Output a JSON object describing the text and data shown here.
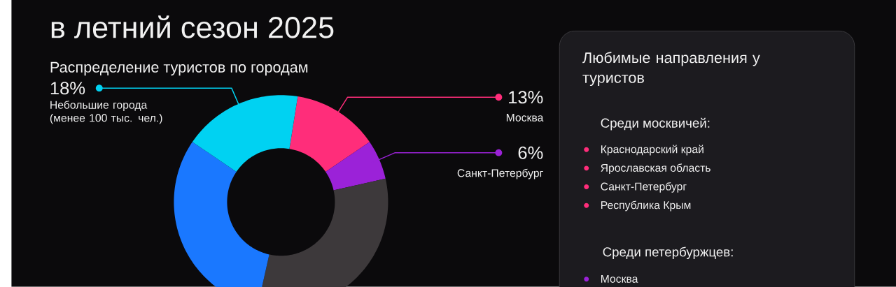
{
  "chart_data": {
    "type": "donut",
    "title": "в летний сезон 2025",
    "subtitle": "Распределение туристов по городам",
    "categories": [
      "Москва",
      "Санкт-Петербург",
      null,
      null,
      "Небольшие города (менее 100 тыс. чел.)"
    ],
    "values": [
      13,
      6,
      32,
      31,
      18
    ],
    "colors": [
      "#ff2d7a",
      "#9b22d8",
      "#3d393b",
      "#1a78ff",
      "#00d2f2"
    ],
    "value_labels": [
      "13%",
      "6%",
      null,
      null,
      "18%"
    ],
    "legend": "right",
    "annotations": [
      "Любимые направления у туристов",
      "Среди москвичей:",
      "Краснодарский край",
      "Ярославская область",
      "Санкт-Петербург",
      "Республика Крым",
      "Среди петербуржцев:",
      "Москва"
    ]
  }
}
